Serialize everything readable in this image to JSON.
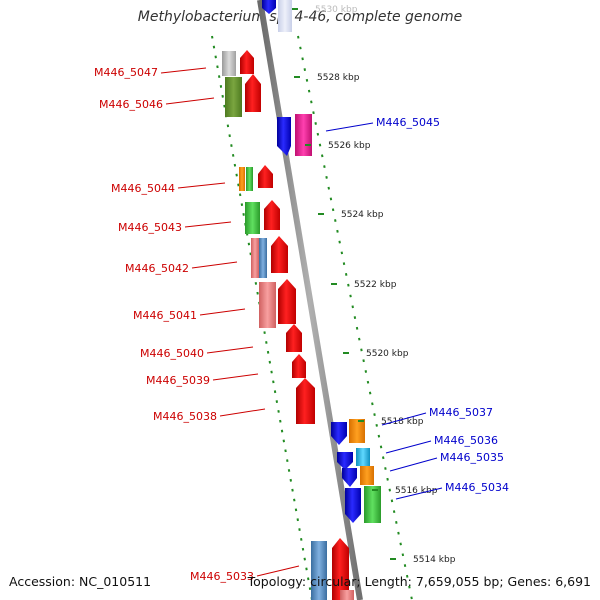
{
  "header": {
    "title": "Methylobacterium sp. 4-46, complete genome"
  },
  "footer": {
    "accession": "Accession: NC_010511",
    "summary": "Topology: circular; Length: 7,659,055 bp; Genes: 6,691"
  },
  "colors": {
    "forward_label": "#cc0000",
    "reverse_label": "#0000cc",
    "ruler_dots": "#228b22",
    "backbone": "#8a8a8a"
  },
  "ruler": {
    "ticks": [
      "5514 kbp",
      "5516 kbp",
      "5518 kbp",
      "5520 kbp",
      "5522 kbp",
      "5524 kbp",
      "5526 kbp",
      "5528 kbp",
      "5530 kbp"
    ]
  },
  "genes": [
    {
      "label": "M446_5047",
      "strand": "left"
    },
    {
      "label": "M446_5046",
      "strand": "left"
    },
    {
      "label": "M446_5045",
      "strand": "right"
    },
    {
      "label": "M446_5044",
      "strand": "left"
    },
    {
      "label": "M446_5043",
      "strand": "left"
    },
    {
      "label": "M446_5042",
      "strand": "left"
    },
    {
      "label": "M446_5041",
      "strand": "left"
    },
    {
      "label": "M446_5040",
      "strand": "left"
    },
    {
      "label": "M446_5039",
      "strand": "left"
    },
    {
      "label": "M446_5038",
      "strand": "left"
    },
    {
      "label": "M446_5037",
      "strand": "right"
    },
    {
      "label": "M446_5036",
      "strand": "right"
    },
    {
      "label": "M446_5035",
      "strand": "right"
    },
    {
      "label": "M446_5034",
      "strand": "right"
    },
    {
      "label": "M446_5033",
      "strand": "left"
    }
  ]
}
